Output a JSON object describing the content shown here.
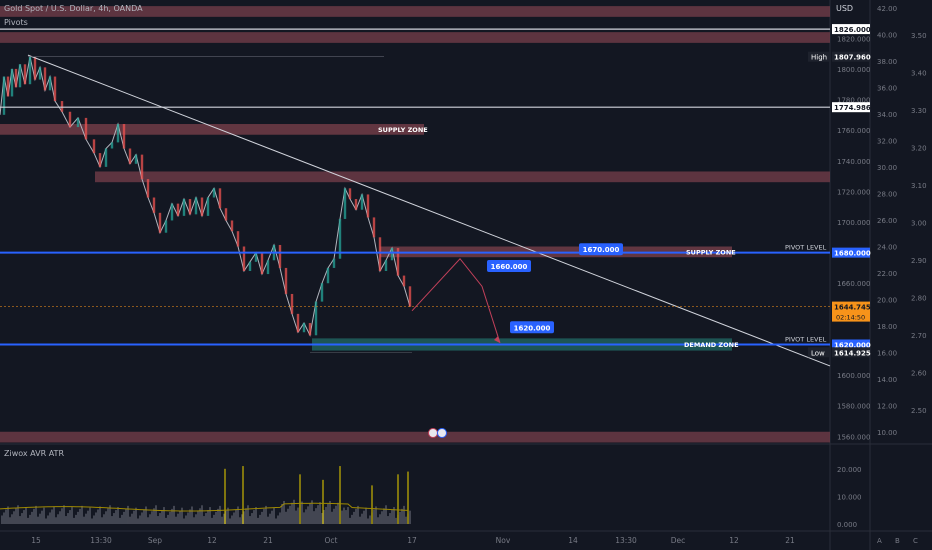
{
  "header": {
    "symbol": "Gold Spot / U.S. Dollar, 4h, OANDA",
    "indicator": "Pivots",
    "currency": "USD"
  },
  "lower_pane": {
    "title": "Ziwox AVR ATR",
    "axis_ticks": [
      "20.000",
      "10.000",
      "0.000"
    ],
    "aux_axis_ticks": [
      "A",
      "B",
      "C"
    ]
  },
  "colors": {
    "background": "#131722",
    "zone_fill": "#6b3a45",
    "demand_fill": "#1f5c5a",
    "pivot_line": "#2962ff",
    "label_blue": "#2962ff",
    "trendline": "#d1d4dc",
    "projection": "#c2405a",
    "current_price": "#f7931a",
    "atr_bar": "#787b86",
    "atr_spike": "#c8b400",
    "atr_ma": "#a08a00"
  },
  "chart_data": [
    {
      "type": "line",
      "title": "Gold Spot / U.S. Dollar, 4h, OANDA",
      "ylabel": "USD",
      "ylim": [
        1555,
        1845
      ],
      "x_ticks": [
        "15",
        "13:30",
        "Sep",
        "12",
        "21",
        "Oct",
        "17",
        "Nov",
        "14",
        "13:30",
        "Dec",
        "12",
        "21"
      ],
      "y_ticks": [
        "1820.000",
        "1800.000",
        "1780.000",
        "1760.000",
        "1740.000",
        "1720.000",
        "1700.000",
        "1680.000",
        "1660.000",
        "1640.000",
        "1620.000",
        "1600.000",
        "1580.000",
        "1560.000"
      ],
      "right_axis_ticks": [
        "42.00",
        "40.00",
        "38.00",
        "36.00",
        "34.00",
        "32.00",
        "30.00",
        "28.00",
        "26.00",
        "24.00",
        "22.00",
        "20.00",
        "18.00",
        "16.00",
        "14.00",
        "12.00",
        "10.00"
      ],
      "ratio_axis_ticks": [
        "3.50",
        "3.40",
        "3.30",
        "3.20",
        "3.10",
        "3.00",
        "2.90",
        "2.80",
        "2.70",
        "2.60",
        "2.50"
      ],
      "price_path": [
        {
          "x": 0,
          "y": 1770
        },
        {
          "x": 4,
          "y": 1795
        },
        {
          "x": 8,
          "y": 1782
        },
        {
          "x": 12,
          "y": 1800
        },
        {
          "x": 16,
          "y": 1788
        },
        {
          "x": 20,
          "y": 1803
        },
        {
          "x": 25,
          "y": 1790
        },
        {
          "x": 30,
          "y": 1808
        },
        {
          "x": 35,
          "y": 1793
        },
        {
          "x": 40,
          "y": 1801
        },
        {
          "x": 45,
          "y": 1786
        },
        {
          "x": 50,
          "y": 1795
        },
        {
          "x": 55,
          "y": 1779
        },
        {
          "x": 62,
          "y": 1772
        },
        {
          "x": 70,
          "y": 1762
        },
        {
          "x": 78,
          "y": 1768
        },
        {
          "x": 86,
          "y": 1754
        },
        {
          "x": 94,
          "y": 1745
        },
        {
          "x": 100,
          "y": 1736
        },
        {
          "x": 106,
          "y": 1748
        },
        {
          "x": 112,
          "y": 1752
        },
        {
          "x": 118,
          "y": 1764
        },
        {
          "x": 124,
          "y": 1748
        },
        {
          "x": 130,
          "y": 1738
        },
        {
          "x": 136,
          "y": 1744
        },
        {
          "x": 142,
          "y": 1728
        },
        {
          "x": 148,
          "y": 1716
        },
        {
          "x": 154,
          "y": 1706
        },
        {
          "x": 160,
          "y": 1693
        },
        {
          "x": 166,
          "y": 1701
        },
        {
          "x": 172,
          "y": 1712
        },
        {
          "x": 178,
          "y": 1704
        },
        {
          "x": 184,
          "y": 1715
        },
        {
          "x": 190,
          "y": 1705
        },
        {
          "x": 196,
          "y": 1716
        },
        {
          "x": 202,
          "y": 1704
        },
        {
          "x": 208,
          "y": 1716
        },
        {
          "x": 214,
          "y": 1722
        },
        {
          "x": 220,
          "y": 1709
        },
        {
          "x": 226,
          "y": 1701
        },
        {
          "x": 232,
          "y": 1694
        },
        {
          "x": 238,
          "y": 1684
        },
        {
          "x": 244,
          "y": 1668
        },
        {
          "x": 250,
          "y": 1674
        },
        {
          "x": 256,
          "y": 1680
        },
        {
          "x": 262,
          "y": 1666
        },
        {
          "x": 268,
          "y": 1675
        },
        {
          "x": 274,
          "y": 1685
        },
        {
          "x": 280,
          "y": 1670
        },
        {
          "x": 286,
          "y": 1653
        },
        {
          "x": 292,
          "y": 1640
        },
        {
          "x": 298,
          "y": 1628
        },
        {
          "x": 304,
          "y": 1634
        },
        {
          "x": 310,
          "y": 1626
        },
        {
          "x": 316,
          "y": 1648
        },
        {
          "x": 322,
          "y": 1660
        },
        {
          "x": 328,
          "y": 1670
        },
        {
          "x": 334,
          "y": 1676
        },
        {
          "x": 340,
          "y": 1702
        },
        {
          "x": 345,
          "y": 1722
        },
        {
          "x": 350,
          "y": 1715
        },
        {
          "x": 356,
          "y": 1708
        },
        {
          "x": 362,
          "y": 1718
        },
        {
          "x": 368,
          "y": 1703
        },
        {
          "x": 374,
          "y": 1690
        },
        {
          "x": 380,
          "y": 1668
        },
        {
          "x": 386,
          "y": 1675
        },
        {
          "x": 392,
          "y": 1683
        },
        {
          "x": 398,
          "y": 1665
        },
        {
          "x": 404,
          "y": 1658
        },
        {
          "x": 410,
          "y": 1644.7
        }
      ],
      "annotations": [
        {
          "label": "SUPPLY ZONE",
          "kind": "zone",
          "low": 1757,
          "high": 1764,
          "x_from": 0,
          "x_to": 424,
          "text_x": 378
        },
        {
          "label": "SUPPLY ZONE",
          "kind": "zone",
          "low": 1677,
          "high": 1684,
          "x_from": 380,
          "x_to": 732,
          "text_x": 686
        },
        {
          "label": "DEMAND ZONE",
          "kind": "demand",
          "low": 1616,
          "high": 1624,
          "x_from": 312,
          "x_to": 732,
          "text_x": 684
        },
        {
          "label": "PIVOT LEVEL",
          "kind": "pivot",
          "value": 1680,
          "text_x": 785
        },
        {
          "label": "PIVOT LEVEL",
          "kind": "pivot",
          "value": 1620,
          "text_x": 785
        }
      ],
      "zones": [
        {
          "low": 1834,
          "high": 1841,
          "x_from": 0,
          "x_to": 830
        },
        {
          "low": 1817,
          "high": 1824,
          "x_from": 0,
          "x_to": 830
        },
        {
          "low": 1726,
          "high": 1733,
          "x_from": 95,
          "x_to": 830
        },
        {
          "low": 1556,
          "high": 1563,
          "x_from": 0,
          "x_to": 830
        }
      ],
      "levels": [
        {
          "value": 1826,
          "label": "1826.000",
          "style": "white"
        },
        {
          "value": 1807.96,
          "label": "1807.960",
          "name": "High",
          "style": "dark"
        },
        {
          "value": 1774.986,
          "label": "1774.986",
          "style": "white"
        },
        {
          "value": 1680,
          "label": "1680.000",
          "style": "blue"
        },
        {
          "value": 1644.745,
          "label": "1644.745",
          "sub": "02:14:50",
          "style": "orange"
        },
        {
          "value": 1620,
          "label": "1620.000",
          "style": "blue"
        },
        {
          "value": 1614.925,
          "label": "1614.925",
          "name": "Low",
          "style": "dark"
        }
      ],
      "trendline": [
        {
          "x": 28,
          "y": 1809
        },
        {
          "x": 830,
          "y": 1606
        }
      ],
      "projection": [
        {
          "x": 412,
          "y": 1642
        },
        {
          "x": 460,
          "y": 1676
        },
        {
          "x": 482,
          "y": 1658
        },
        {
          "x": 500,
          "y": 1621
        }
      ],
      "target_labels": [
        {
          "text": "1670.000",
          "x": 579,
          "y": 1677
        },
        {
          "text": "1660.000",
          "x": 487,
          "y": 1666
        },
        {
          "text": "1620.000",
          "x": 510,
          "y": 1626
        }
      ]
    },
    {
      "type": "bar",
      "title": "Ziwox AVR ATR",
      "ylim": [
        0,
        25
      ],
      "spikes": [
        {
          "x": 225,
          "value": 20
        },
        {
          "x": 243,
          "value": 21
        },
        {
          "x": 300,
          "value": 18
        },
        {
          "x": 323,
          "value": 16
        },
        {
          "x": 340,
          "value": 21
        },
        {
          "x": 372,
          "value": 14
        },
        {
          "x": 398,
          "value": 18
        },
        {
          "x": 408,
          "value": 19
        }
      ]
    }
  ]
}
